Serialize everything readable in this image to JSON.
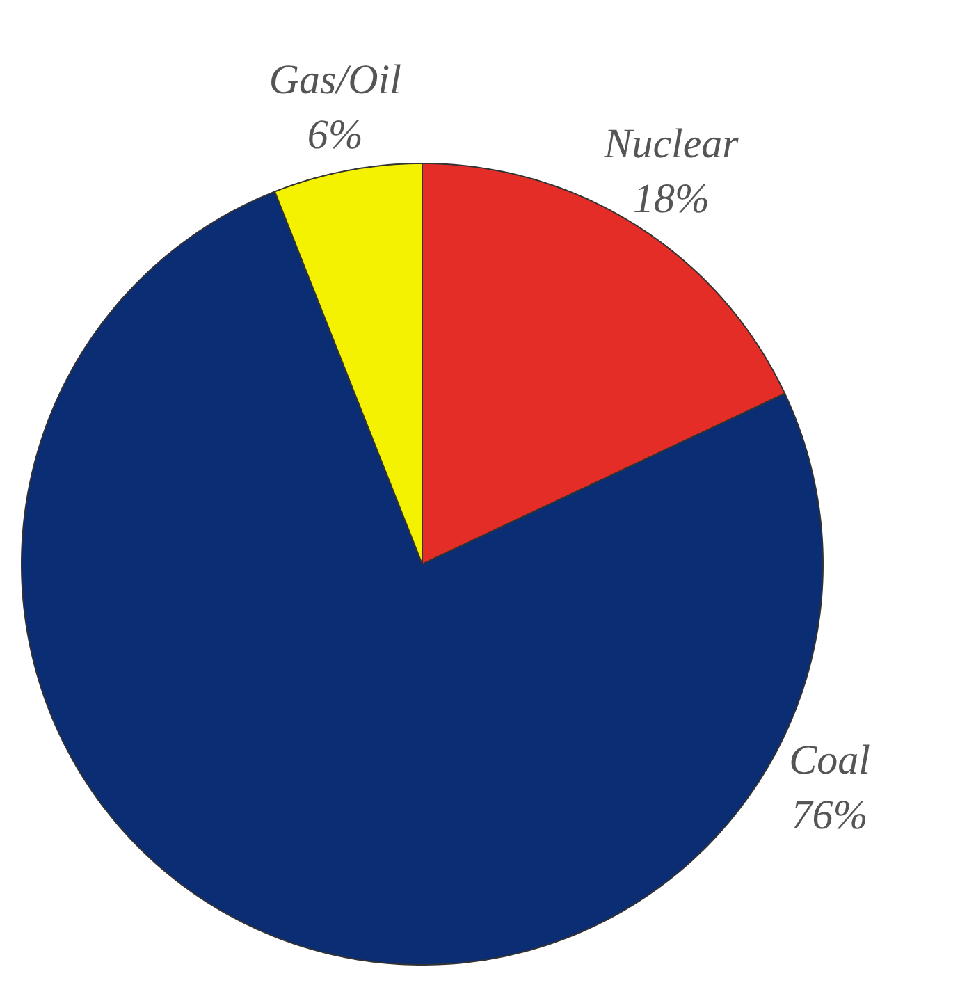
{
  "chart_data": {
    "type": "pie",
    "categories": [
      "Nuclear",
      "Coal",
      "Gas/Oil"
    ],
    "values": [
      18,
      76,
      6
    ],
    "colors": [
      "#e52d27",
      "#0b2d74",
      "#f4f200"
    ],
    "value_labels": [
      "18%",
      "76%",
      "6%"
    ]
  }
}
